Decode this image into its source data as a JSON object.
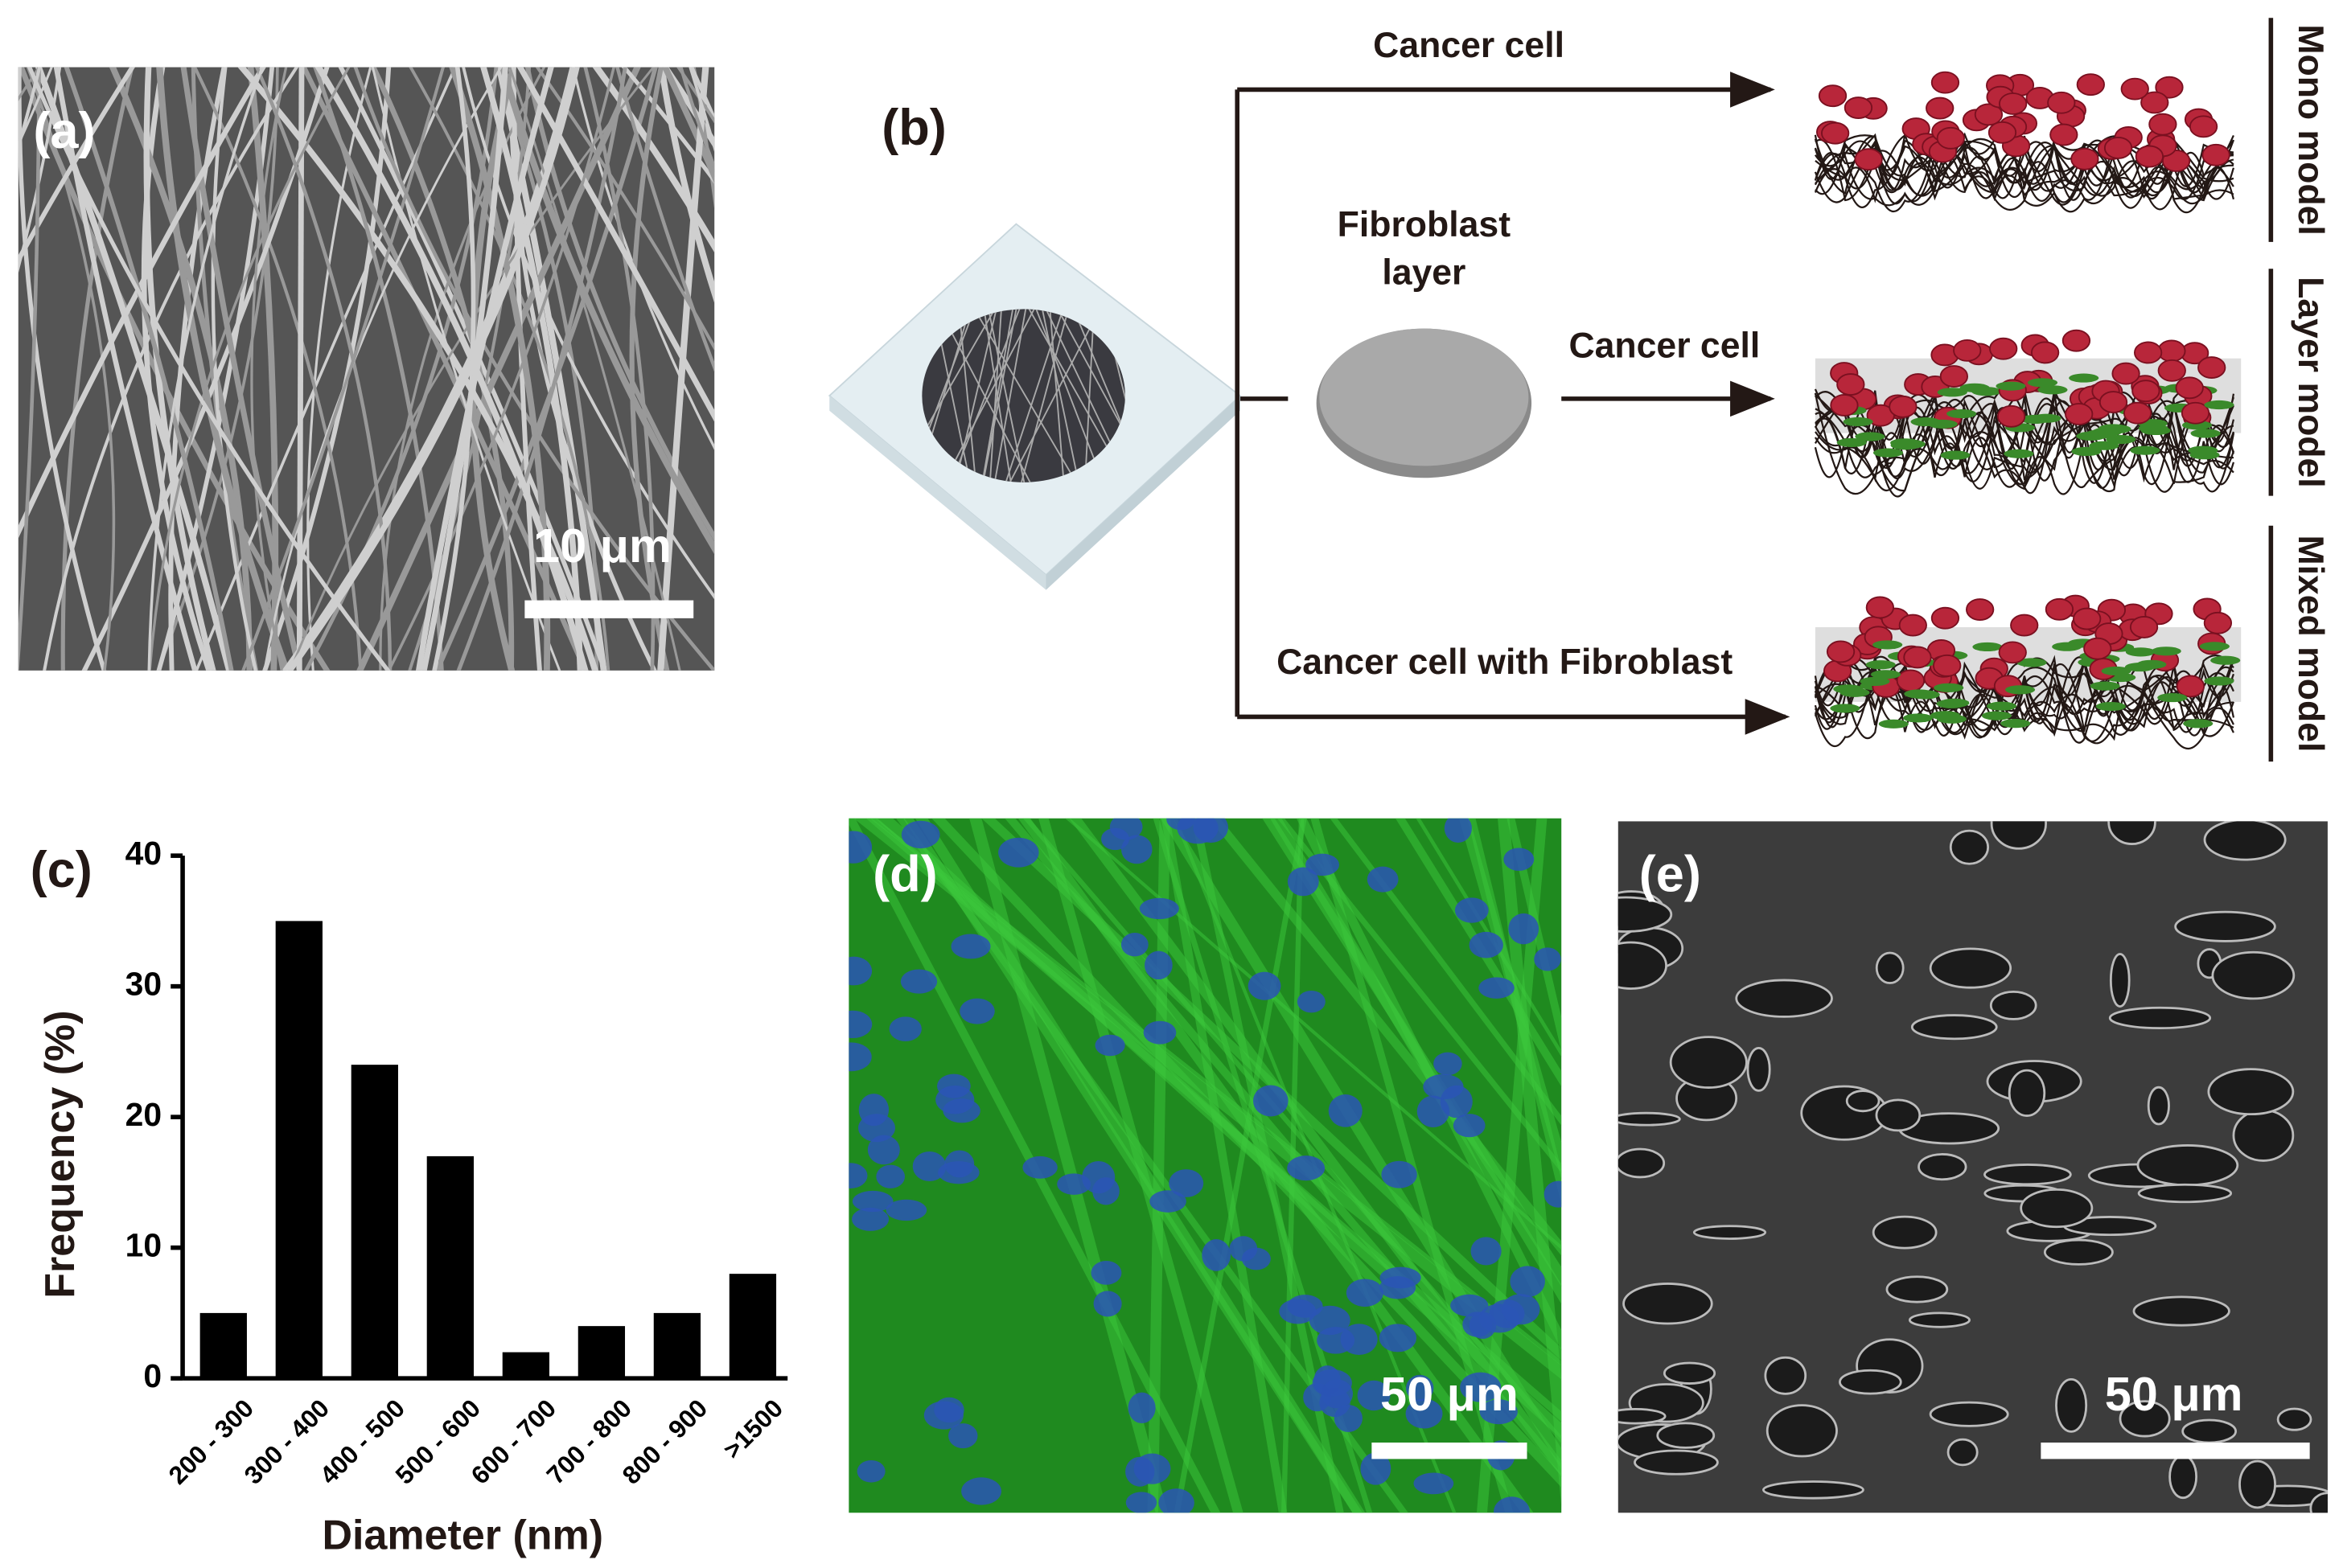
{
  "panel_a": {
    "label": "(a)",
    "scale_bar": "10 μm"
  },
  "panel_b": {
    "label": "(b)",
    "branches": [
      {
        "arrow": "Cancer cell",
        "model": "Mono model"
      },
      {
        "arrow": "Cancer cell",
        "model": "Layer model"
      },
      {
        "arrow": "Cancer cell with Fibroblast",
        "model": "Mixed model"
      }
    ],
    "fibroblast_layer": [
      "Fibroblast",
      "layer"
    ]
  },
  "panel_c": {
    "label": "(c)"
  },
  "panel_d": {
    "label": "(d)",
    "scale_bar": "50 μm"
  },
  "panel_e": {
    "label": "(e)",
    "scale_bar": "50 μm"
  },
  "chart_data": {
    "type": "bar",
    "categories": [
      "200 - 300",
      "300 - 400",
      "400 - 500",
      "500 - 600",
      "600 - 700",
      "700 - 800",
      "800 - 900",
      ">1500"
    ],
    "values": [
      5,
      35,
      24,
      17,
      2,
      4,
      5,
      8
    ],
    "color": "#000000",
    "x_label": "Diameter (nm)",
    "y_label": "Frequency (%)",
    "ylim": [
      0,
      40
    ],
    "yticks": [
      0,
      10,
      20,
      30,
      40
    ]
  }
}
